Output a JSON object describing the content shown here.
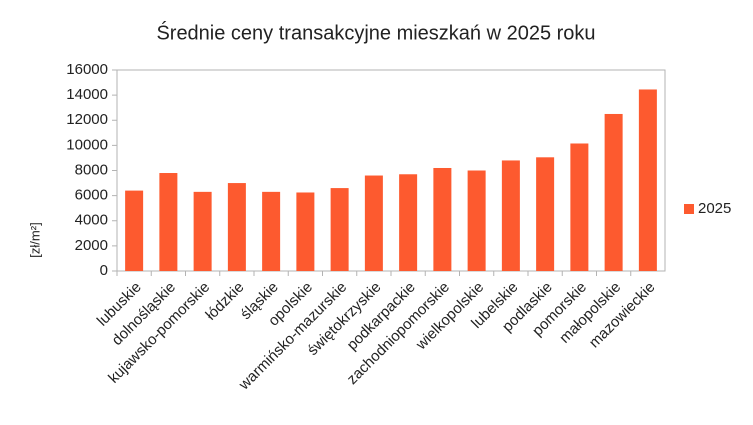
{
  "chart_data": {
    "type": "bar",
    "title": "Średnie ceny transakcyjne mieszkań w 2025 roku",
    "y_label": "[zł/m²]",
    "categories": [
      "lubuskie",
      "dolnośląskie",
      "kujawsko-pomorskie",
      "łódzkie",
      "śląskie",
      "opolskie",
      "warmińsko-mazurskie",
      "świętokrzyskie",
      "podkarpackie",
      "zachodniopomorskie",
      "wielkopolskie",
      "lubelskie",
      "podlaskie",
      "pomorskie",
      "małopolskie",
      "mazowieckie"
    ],
    "series": [
      {
        "name": "2025",
        "color": "#fd5a2f",
        "values": [
          6400,
          7800,
          6300,
          7000,
          6300,
          6250,
          6600,
          7600,
          7700,
          8200,
          8000,
          8800,
          9050,
          10150,
          12500,
          14450
        ]
      }
    ],
    "ylim": [
      0,
      16000
    ],
    "yticks": [
      0,
      2000,
      4000,
      6000,
      8000,
      10000,
      12000,
      14000,
      16000
    ],
    "legend": "right"
  }
}
